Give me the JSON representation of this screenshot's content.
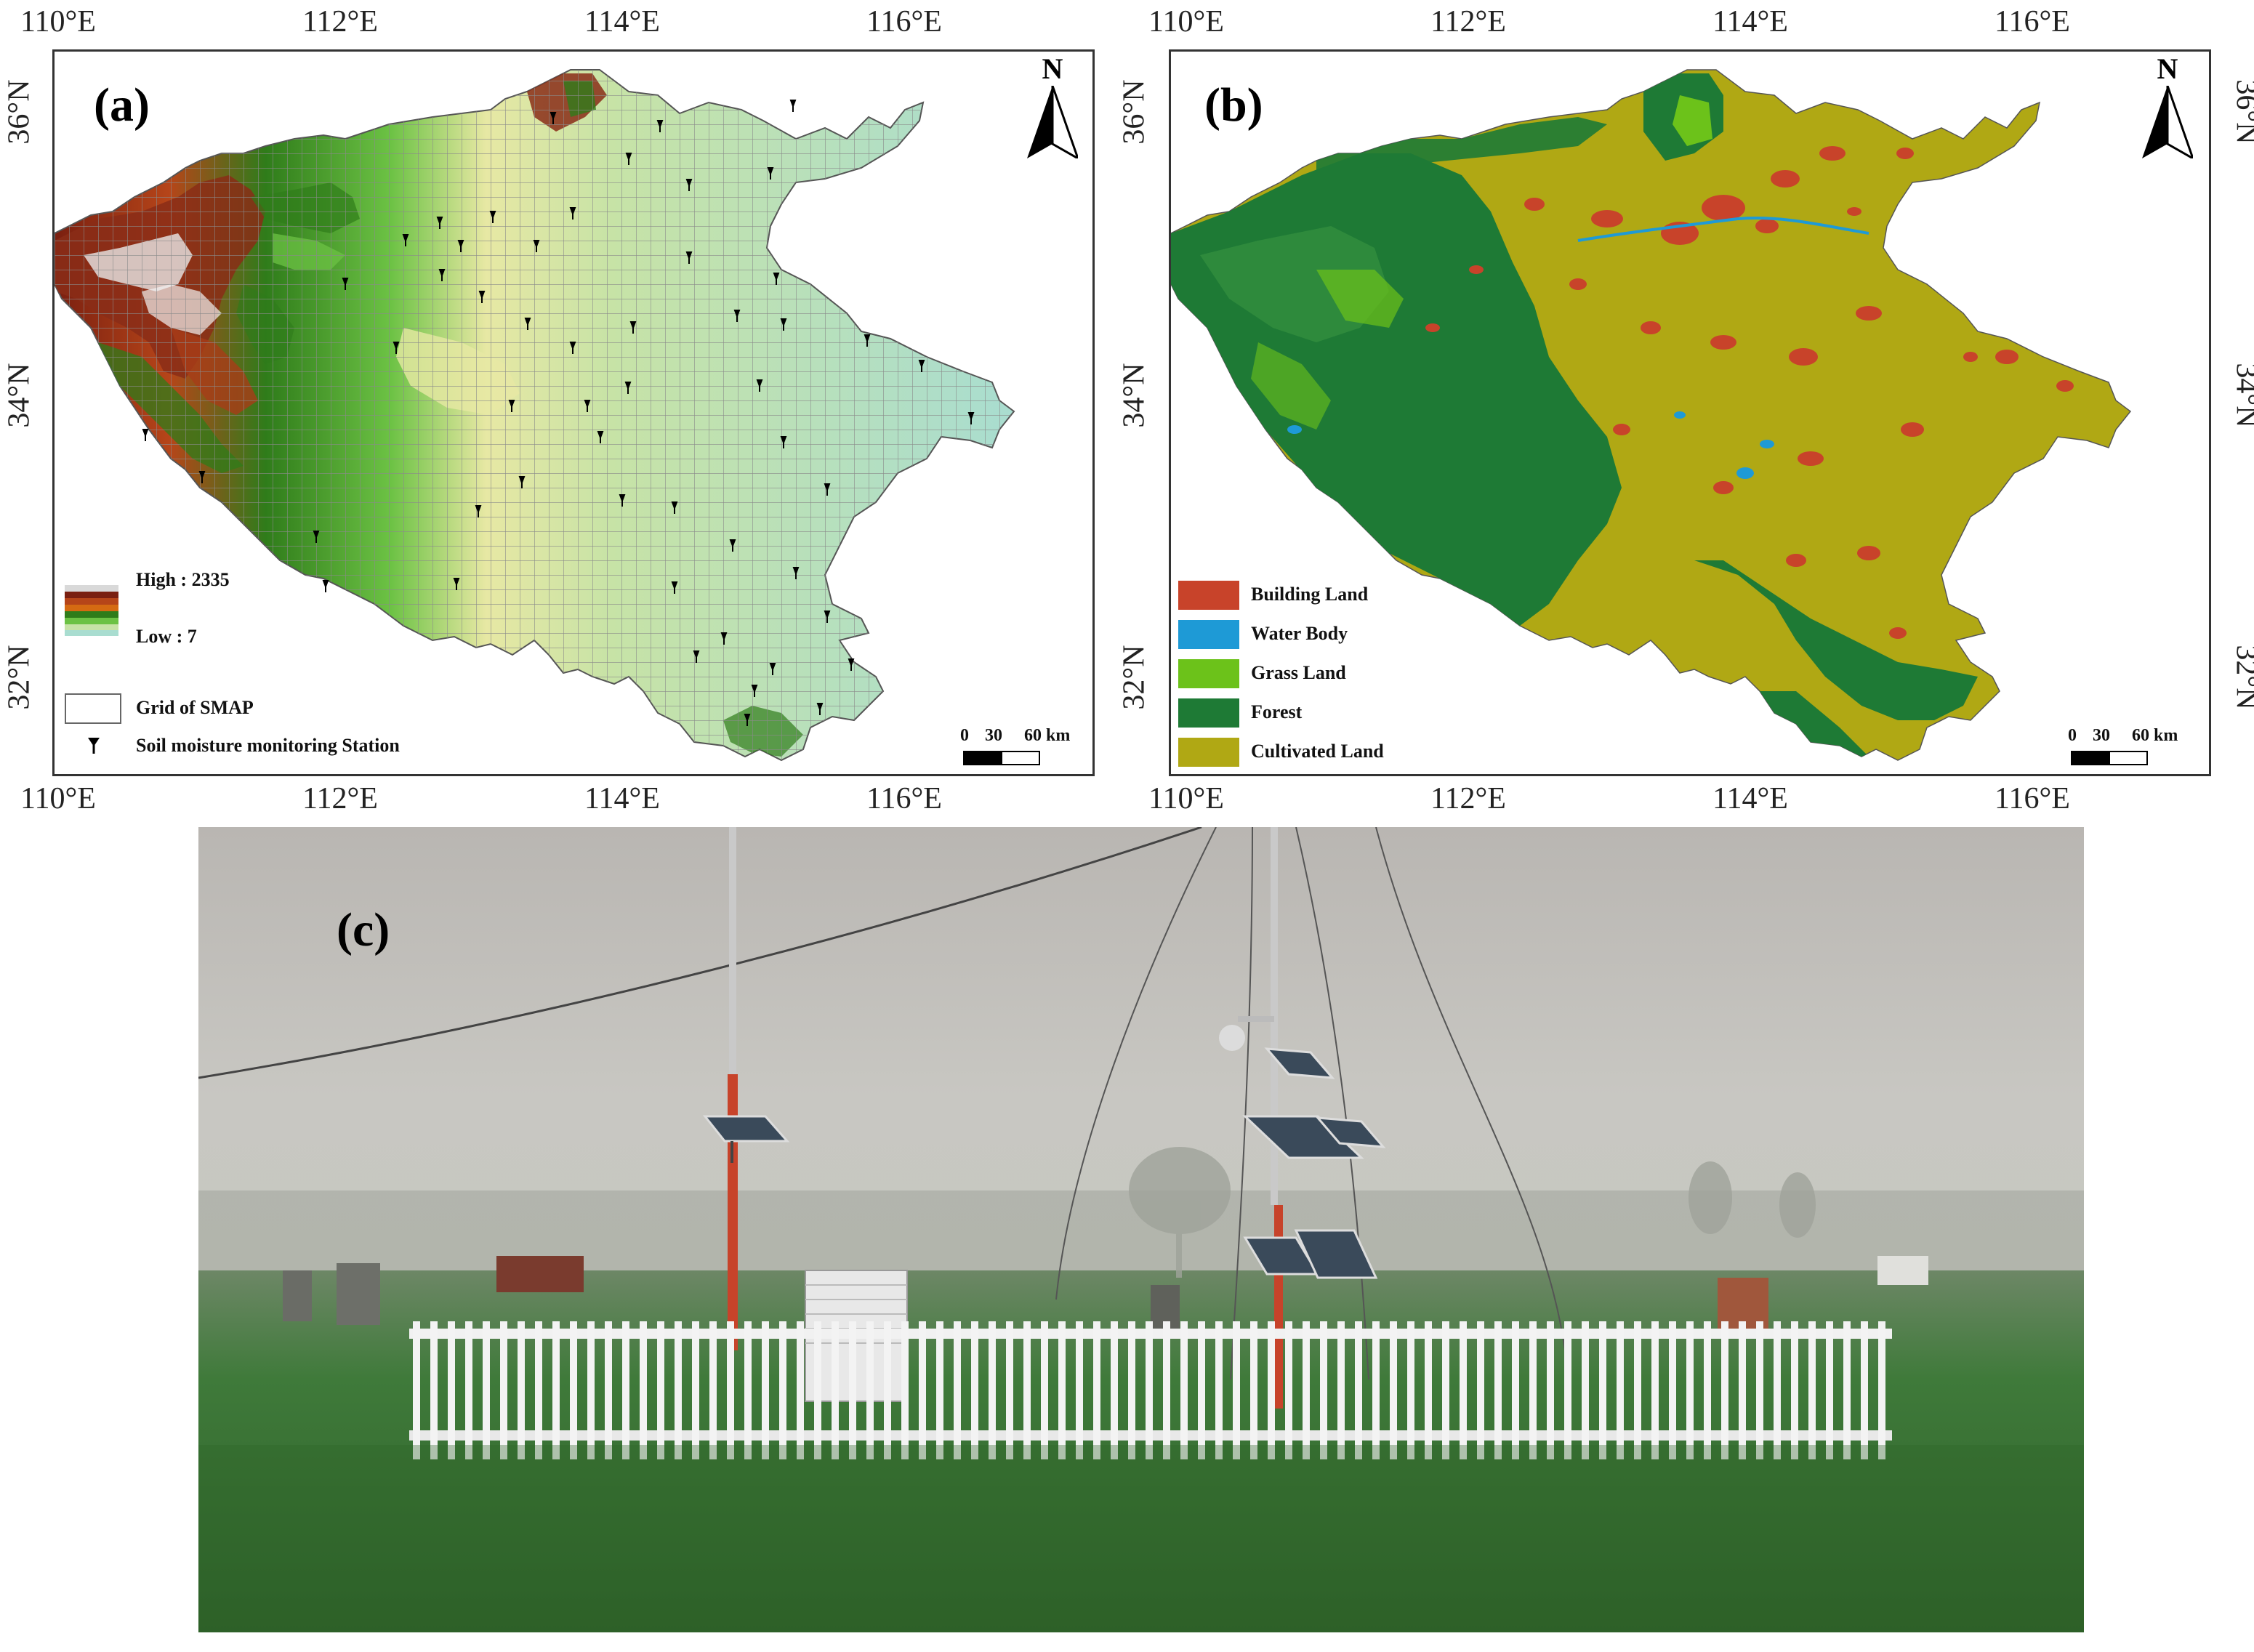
{
  "axes": {
    "lon_labels": [
      "110°E",
      "112°E",
      "114°E",
      "116°E"
    ],
    "lat_labels": [
      "36°N",
      "34°N",
      "32°N"
    ]
  },
  "panel_a": {
    "label": "(a)",
    "north": "N",
    "elevation_legend": {
      "high": "High : 2335",
      "low": "Low : 7",
      "colors": [
        "#ffffff",
        "#d9d9d9",
        "#7a1f10",
        "#b64519",
        "#d56a12",
        "#2f7c1a",
        "#6cc244",
        "#c7e3a6",
        "#a9ddd0"
      ]
    },
    "grid_legend": "Grid of SMAP",
    "station_legend": "Soil moisture monitoring Station",
    "scale": {
      "zero": "0",
      "mid": "30",
      "end": "60 km"
    }
  },
  "panel_b": {
    "label": "(b)",
    "north": "N",
    "landuse_legend": [
      {
        "name": "Building Land",
        "color": "#c8432a"
      },
      {
        "name": "Water Body",
        "color": "#1e9ad6"
      },
      {
        "name": "Grass Land",
        "color": "#6cc21a"
      },
      {
        "name": "Forest",
        "color": "#1e7a35"
      },
      {
        "name": "Cultivated Land",
        "color": "#b0a814"
      }
    ],
    "scale": {
      "zero": "0",
      "mid": "30",
      "end": "60 km"
    }
  },
  "panel_c": {
    "label": "(c)"
  }
}
